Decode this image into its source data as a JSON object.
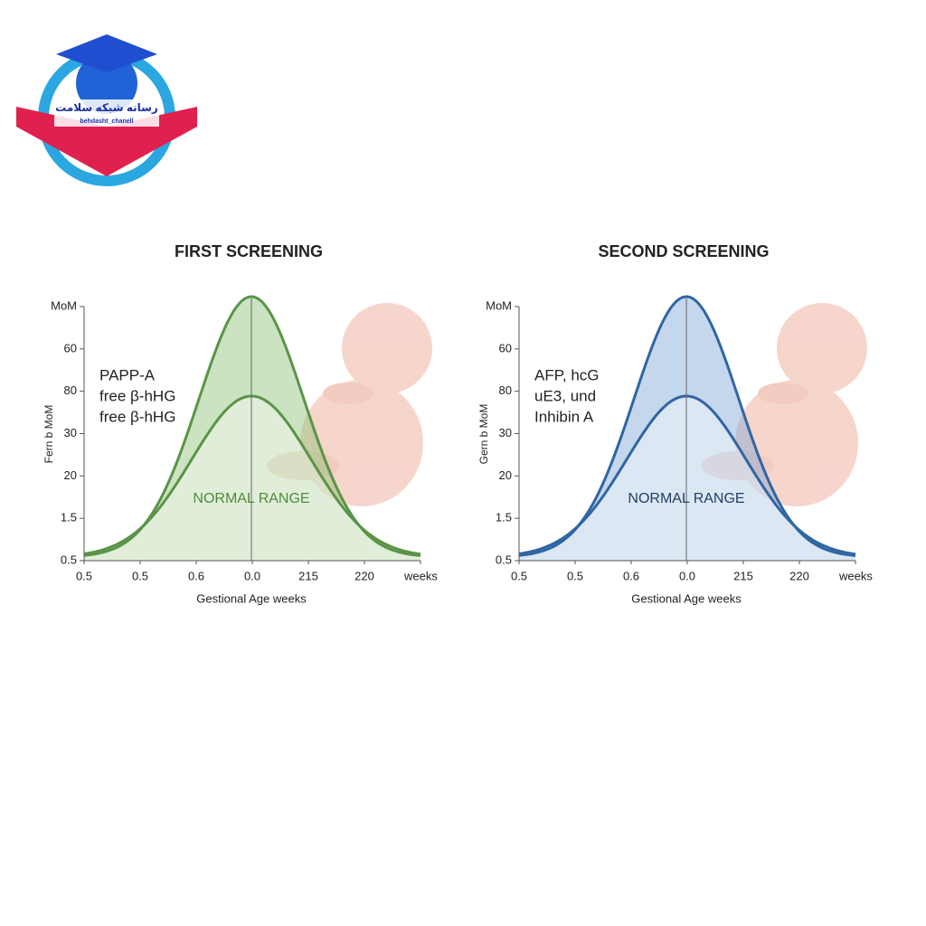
{
  "logo": {
    "title": "رسانه شبکه سلامت",
    "subtitle": "behdasht_chanell"
  },
  "panels": [
    {
      "title": "FIRST SCREENING",
      "y_unit": "MoM",
      "y_axis_label": "Fern b MoM",
      "y_labels": [
        "60",
        "80",
        "30",
        "20",
        "1.5",
        "0.5"
      ],
      "x_labels": [
        "0.5",
        "0.5",
        "0.6",
        "0.0",
        "215",
        "220",
        "weeks"
      ],
      "x_axis_label": "Gestional Age weeks",
      "markers": [
        "PAPP-A",
        "free β-hHG",
        "free β-hHG"
      ],
      "band_label": "NORMAL RANGE",
      "color": "#5a9447",
      "fill": "#8cc174",
      "band_color": "#4f8a3c"
    },
    {
      "title": "SECOND SCREENING",
      "y_unit": "MoM",
      "y_axis_label": "Gern b MoM",
      "y_labels": [
        "60",
        "80",
        "30",
        "20",
        "1.5",
        "0.5"
      ],
      "x_labels": [
        "0.5",
        "0.5",
        "0.6",
        "0.0",
        "215",
        "220",
        "weeks"
      ],
      "x_axis_label": "Gestional Age weeks",
      "markers": [
        "AFP, hcG",
        "uE3, und",
        "Inhibin A"
      ],
      "band_label": "NORMAL RANGE",
      "color": "#2f66a3",
      "fill": "#7ea6d6",
      "band_color": "#1f3f66"
    }
  ]
}
